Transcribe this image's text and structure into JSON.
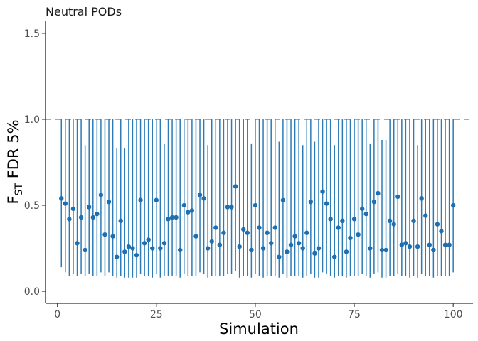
{
  "chart_data": {
    "type": "scatter",
    "title": "Neutral PODs",
    "xlabel": "Simulation",
    "ylabel_main": "F",
    "ylabel_sub": "ST",
    "ylabel_rest": " FDR 5%",
    "xlim": [
      -3,
      105
    ],
    "ylim": [
      -0.07,
      1.57
    ],
    "xticks": [
      0,
      25,
      50,
      75,
      100
    ],
    "xtick_labels": [
      "0",
      "25",
      "50",
      "75",
      "100"
    ],
    "yticks": [
      0.0,
      0.5,
      1.0,
      1.5
    ],
    "ytick_labels": [
      "0.0",
      "0.5",
      "1.0",
      "1.5"
    ],
    "reference_line": 1.0,
    "grid": false,
    "point_color": "#1f6fb0",
    "bar_color": "#2c7bb6",
    "x": [
      1,
      2,
      3,
      4,
      5,
      6,
      7,
      8,
      9,
      10,
      11,
      12,
      13,
      14,
      15,
      16,
      17,
      18,
      19,
      20,
      21,
      22,
      23,
      24,
      25,
      26,
      27,
      28,
      29,
      30,
      31,
      32,
      33,
      34,
      35,
      36,
      37,
      38,
      39,
      40,
      41,
      42,
      43,
      44,
      45,
      46,
      47,
      48,
      49,
      50,
      51,
      52,
      53,
      54,
      55,
      56,
      57,
      58,
      59,
      60,
      61,
      62,
      63,
      64,
      65,
      66,
      67,
      68,
      69,
      70,
      71,
      72,
      73,
      74,
      75,
      76,
      77,
      78,
      79,
      80,
      81,
      82,
      83,
      84,
      85,
      86,
      87,
      88,
      89,
      90,
      91,
      92,
      93,
      94,
      95,
      96,
      97,
      98,
      99,
      100
    ],
    "y": [
      0.54,
      0.51,
      0.42,
      0.48,
      0.28,
      0.43,
      0.24,
      0.49,
      0.43,
      0.45,
      0.56,
      0.33,
      0.52,
      0.32,
      0.2,
      0.41,
      0.23,
      0.26,
      0.25,
      0.21,
      0.53,
      0.28,
      0.3,
      0.25,
      0.53,
      0.25,
      0.28,
      0.42,
      0.43,
      0.43,
      0.24,
      0.5,
      0.46,
      0.47,
      0.32,
      0.56,
      0.54,
      0.25,
      0.29,
      0.37,
      0.27,
      0.34,
      0.49,
      0.49,
      0.61,
      0.26,
      0.36,
      0.34,
      0.24,
      0.5,
      0.37,
      0.25,
      0.34,
      0.28,
      0.37,
      0.2,
      0.53,
      0.23,
      0.27,
      0.32,
      0.28,
      0.25,
      0.34,
      0.52,
      0.22,
      0.25,
      0.58,
      0.51,
      0.42,
      0.2,
      0.37,
      0.41,
      0.23,
      0.31,
      0.42,
      0.33,
      0.48,
      0.45,
      0.25,
      0.52,
      0.57,
      0.24,
      0.24,
      0.41,
      0.39,
      0.55,
      0.27,
      0.28,
      0.26,
      0.41,
      0.26,
      0.54,
      0.44,
      0.27,
      0.24,
      0.39,
      0.35,
      0.27,
      0.27,
      0.5
    ],
    "lower": [
      0.14,
      0.11,
      0.09,
      0.1,
      0.09,
      0.1,
      0.09,
      0.1,
      0.09,
      0.09,
      0.11,
      0.09,
      0.11,
      0.09,
      0.08,
      0.09,
      0.08,
      0.08,
      0.08,
      0.08,
      0.1,
      0.09,
      0.09,
      0.08,
      0.1,
      0.08,
      0.09,
      0.09,
      0.09,
      0.09,
      0.08,
      0.1,
      0.09,
      0.09,
      0.09,
      0.11,
      0.1,
      0.08,
      0.09,
      0.09,
      0.09,
      0.09,
      0.1,
      0.1,
      0.12,
      0.08,
      0.09,
      0.09,
      0.08,
      0.1,
      0.09,
      0.08,
      0.09,
      0.09,
      0.09,
      0.08,
      0.1,
      0.08,
      0.09,
      0.09,
      0.09,
      0.08,
      0.09,
      0.1,
      0.08,
      0.08,
      0.11,
      0.1,
      0.09,
      0.08,
      0.09,
      0.09,
      0.08,
      0.09,
      0.09,
      0.09,
      0.1,
      0.09,
      0.08,
      0.1,
      0.11,
      0.08,
      0.08,
      0.09,
      0.09,
      0.1,
      0.09,
      0.09,
      0.08,
      0.09,
      0.08,
      0.1,
      0.09,
      0.09,
      0.08,
      0.09,
      0.09,
      0.09,
      0.09,
      0.11
    ],
    "upper": [
      1,
      1,
      1,
      1,
      1,
      1,
      0.85,
      1,
      1,
      1,
      1,
      1,
      1,
      1,
      0.83,
      1,
      0.83,
      1,
      1,
      1,
      1,
      1,
      1,
      1,
      1,
      1,
      0.86,
      1,
      1,
      1,
      1,
      1,
      1,
      1,
      1,
      1,
      1,
      0.85,
      1,
      1,
      1,
      1,
      1,
      1,
      1,
      1,
      1,
      1,
      0.86,
      1,
      1,
      1,
      1,
      1,
      1,
      0.87,
      1,
      1,
      1,
      1,
      1,
      0.85,
      1,
      1,
      0.87,
      1,
      1,
      1,
      1,
      0.85,
      1,
      1,
      1,
      1,
      1,
      1,
      1,
      1,
      0.86,
      1,
      1,
      0.88,
      0.88,
      1,
      1,
      1,
      1,
      1,
      1,
      1,
      0.85,
      1,
      1,
      1,
      1,
      1,
      1,
      1,
      1,
      1
    ]
  }
}
